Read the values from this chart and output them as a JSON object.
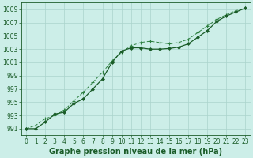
{
  "title": "Graphe pression niveau de la mer (hPa)",
  "xlabel_hours": [
    0,
    1,
    2,
    3,
    4,
    5,
    6,
    7,
    8,
    9,
    10,
    11,
    12,
    13,
    14,
    15,
    16,
    17,
    18,
    19,
    20,
    21,
    22,
    23
  ],
  "line1_x": [
    0,
    1,
    2,
    3,
    4,
    5,
    6,
    7,
    8,
    9,
    10,
    11,
    12,
    13,
    14,
    15,
    16,
    17,
    18,
    19,
    20,
    21,
    22,
    23
  ],
  "line1_y": [
    991.0,
    991.0,
    992.0,
    993.2,
    993.5,
    994.8,
    995.5,
    997.0,
    998.5,
    1001.0,
    1002.7,
    1003.2,
    1003.2,
    1003.0,
    1003.0,
    1003.1,
    1003.3,
    1003.8,
    1004.8,
    1005.8,
    1007.2,
    1008.0,
    1008.6,
    1009.2
  ],
  "line2_x": [
    0,
    1,
    2,
    3,
    4,
    5,
    6,
    7,
    8,
    9,
    10,
    11,
    12,
    13,
    14,
    15,
    16,
    17,
    18,
    19,
    20,
    21,
    22,
    23
  ],
  "line2_y": [
    991.0,
    991.5,
    992.5,
    993.0,
    993.8,
    995.2,
    996.5,
    998.0,
    999.5,
    1001.2,
    1002.5,
    1003.5,
    1004.0,
    1004.2,
    1004.0,
    1003.8,
    1004.0,
    1004.5,
    1005.5,
    1006.5,
    1007.5,
    1008.2,
    1008.8,
    1009.2
  ],
  "ylim": [
    990.0,
    1010.0
  ],
  "ytick_min": 991,
  "ytick_max": 1009,
  "ytick_step": 2,
  "bg_color": "#cceee8",
  "grid_color": "#aad4cc",
  "line_color_dark": "#1a5c28",
  "line_color_light": "#2d8040",
  "title_fontsize": 7.0,
  "tick_fontsize": 5.5
}
